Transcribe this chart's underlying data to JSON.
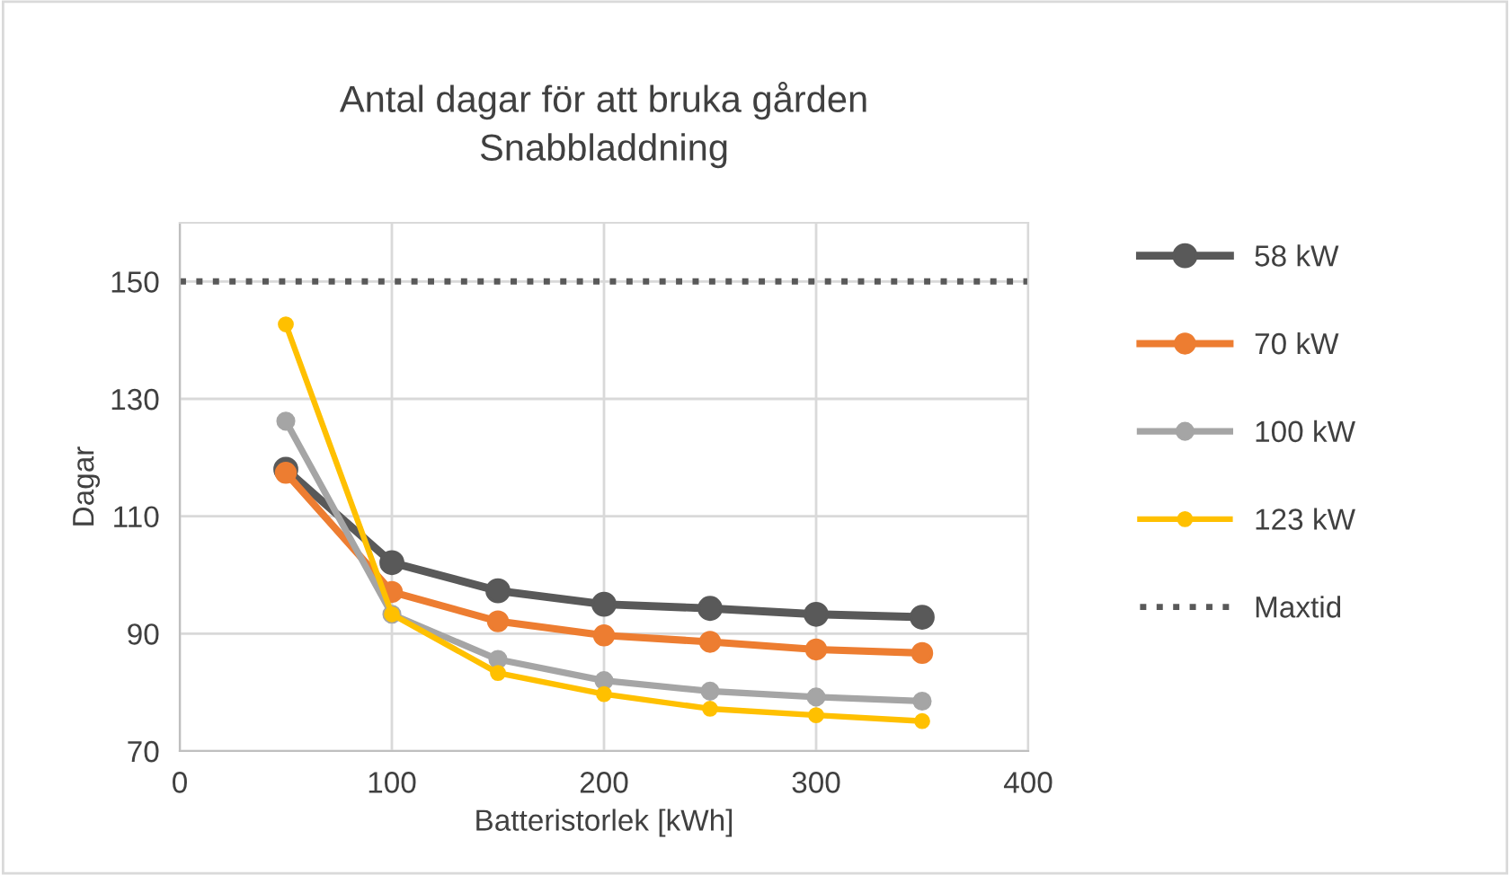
{
  "chart_data": {
    "type": "line",
    "title": "Antal dagar för att bruka gården\nSnabbladdning",
    "xlabel": "Batteristorlek [kWh]",
    "ylabel": "Dagar",
    "x": [
      50,
      100,
      150,
      200,
      250,
      300,
      350
    ],
    "series": [
      {
        "name": "58 kW",
        "color": "#595959",
        "values": [
          118,
          102.1,
          97.3,
          95,
          94.3,
          93.3,
          92.8
        ]
      },
      {
        "name": "70 kW",
        "color": "#ed7d31",
        "values": [
          117.4,
          97.1,
          92.1,
          89.7,
          88.6,
          87.3,
          86.7
        ]
      },
      {
        "name": "100 kW",
        "color": "#a5a5a5",
        "values": [
          126.2,
          93.3,
          85.6,
          82,
          80.2,
          79.2,
          78.5
        ]
      },
      {
        "name": "123 kW",
        "color": "#ffc000",
        "values": [
          142.7,
          93.3,
          83.3,
          79.7,
          77.2,
          76.1,
          75.1
        ]
      }
    ],
    "ref_lines": [
      {
        "axis": "y",
        "value": 150,
        "label": "Maxtid",
        "color": "#595959",
        "line_style": "dotted"
      }
    ],
    "xlim": [
      0,
      400
    ],
    "xticks": [
      0,
      100,
      200,
      300,
      400
    ],
    "ylim": [
      70,
      160
    ],
    "yticks": [
      70,
      90,
      110,
      130,
      150
    ],
    "grid": true,
    "legend": "right",
    "marker": "circle",
    "line_style": "solid"
  }
}
